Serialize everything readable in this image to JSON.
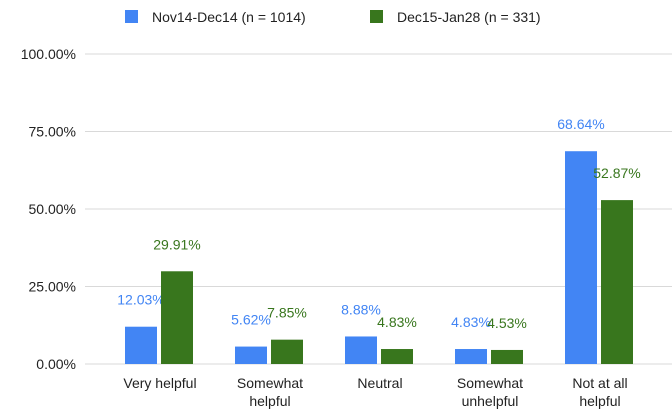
{
  "chart_data": {
    "type": "bar",
    "categories": [
      "Very helpful",
      "Somewhat\nhelpful",
      "Neutral",
      "Somewhat\nunhelpful",
      "Not at all\nhelpful"
    ],
    "series": [
      {
        "name": "Nov14-Dec14 (n = 1014)",
        "color": "#4285f4",
        "values": [
          12.03,
          5.62,
          8.88,
          4.83,
          68.64
        ],
        "value_labels": [
          "12.03%",
          "5.62%",
          "8.88%",
          "4.83%",
          "68.64%"
        ]
      },
      {
        "name": "Dec15-Jan28 (n = 331)",
        "color": "#38761d",
        "values": [
          29.91,
          7.85,
          4.83,
          4.53,
          52.87
        ],
        "value_labels": [
          "29.91%",
          "7.85%",
          "4.83%",
          "4.53%",
          "52.87%"
        ]
      }
    ],
    "ylim": [
      0,
      100
    ],
    "yticks": [
      {
        "value": 0,
        "label": "0.00%"
      },
      {
        "value": 25,
        "label": "25.00%"
      },
      {
        "value": 50,
        "label": "50.00%"
      },
      {
        "value": 75,
        "label": "75.00%"
      },
      {
        "value": 100,
        "label": "100.00%"
      }
    ],
    "grid": true,
    "legend": "top"
  }
}
